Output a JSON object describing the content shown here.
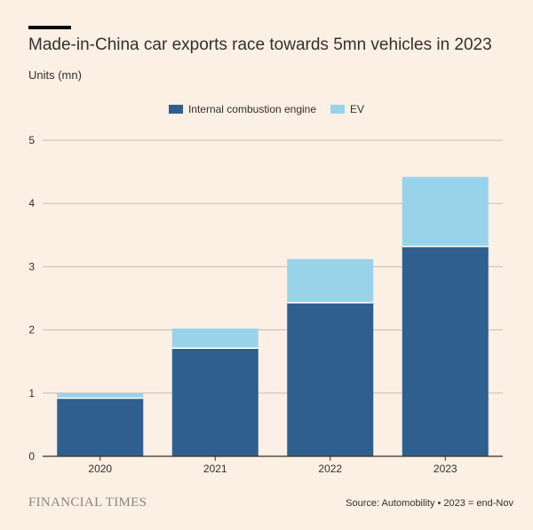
{
  "title": "Made-in-China car exports race towards 5mn vehicles in 2023",
  "subtitle": "Units (mn)",
  "source": "Source: Automobility • 2023 = end-Nov",
  "brand": "FINANCIAL TIMES",
  "colors": {
    "background": "#fcefe3",
    "ice": "#2f5f8f",
    "ev": "#99d3ea",
    "grid": "#c7bdb4",
    "axis": "#33302e",
    "text": "#33302e"
  },
  "chart_data": {
    "type": "bar",
    "stacked": true,
    "categories": [
      "2020",
      "2021",
      "2022",
      "2023"
    ],
    "series": [
      {
        "name": "Internal combustion engine",
        "color": "#2f5f8f",
        "values": [
          0.92,
          1.71,
          2.43,
          3.32
        ]
      },
      {
        "name": "EV",
        "color": "#99d3ea",
        "values": [
          0.08,
          0.31,
          0.69,
          1.1
        ]
      }
    ],
    "yticks": [
      "0",
      "1",
      "2",
      "3",
      "4",
      "5"
    ],
    "ylim": [
      0,
      5
    ],
    "ylabel": "Units (mn)",
    "xlabel": "",
    "grid": true,
    "legend": "top-center"
  }
}
